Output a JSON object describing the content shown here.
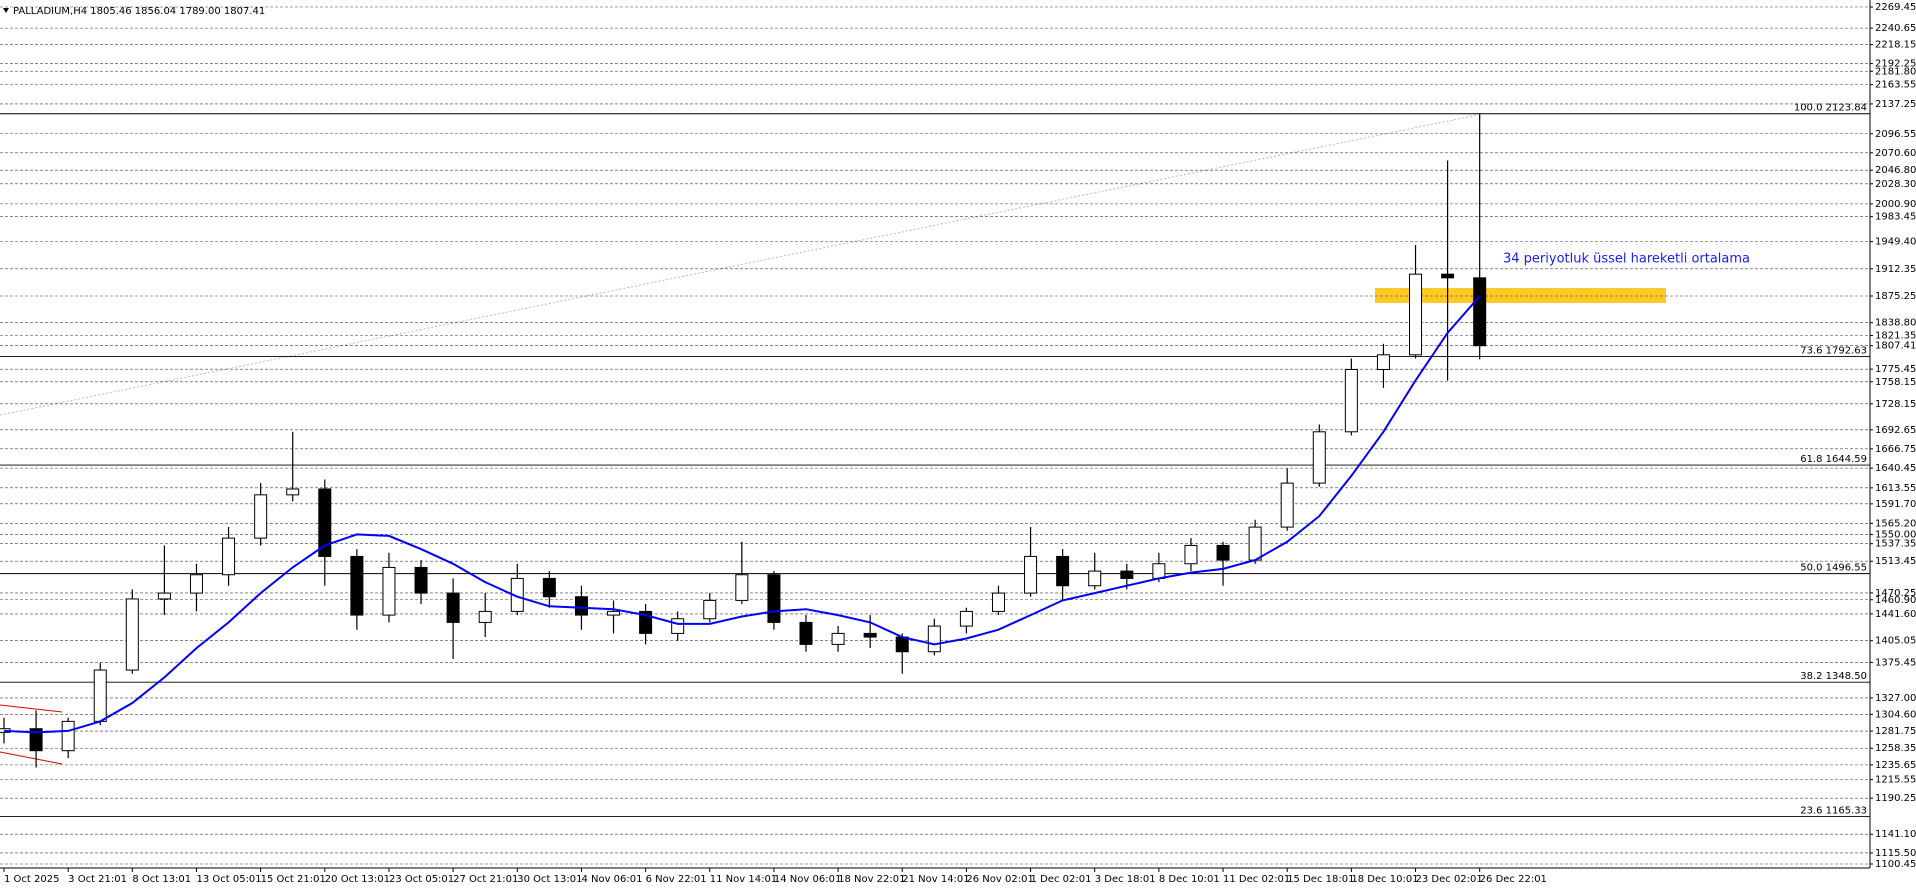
{
  "chart_data": {
    "type": "candlestick",
    "title": "PALLADIUM,H4 1805.46 1856.04 1789.00 1807.41",
    "annotation": "34 periyotluk üssel hareketli ortalama",
    "categories": [
      "1 Oct 2025",
      null,
      "3 Oct 21:01",
      null,
      "8 Oct 13:01",
      null,
      "13 Oct 05:01",
      null,
      "15 Oct 21:01",
      null,
      "20 Oct 13:01",
      null,
      "23 Oct 05:01",
      null,
      "27 Oct 21:01",
      null,
      "30 Oct 13:01",
      null,
      "4 Nov 06:01",
      null,
      "6 Nov 22:01",
      null,
      "11 Nov 14:01",
      null,
      "14 Nov 06:01",
      null,
      "18 Nov 22:01",
      null,
      "21 Nov 14:01",
      null,
      "26 Nov 02:01",
      null,
      "1 Dec 02:01",
      null,
      "3 Dec 18:01",
      null,
      "8 Dec 10:01",
      null,
      "11 Dec 02:01",
      null,
      "15 Dec 18:01",
      null,
      "18 Dec 10:01",
      null,
      "23 Dec 02:01",
      null,
      "26 Dec 22:01"
    ],
    "open": [
      1280,
      1285,
      1255,
      1295,
      1365,
      1462,
      1470,
      1495,
      1545,
      1604,
      1612,
      1520,
      1440,
      1505,
      1470,
      1430,
      1445,
      1490,
      1465,
      1440,
      1445,
      1415,
      1435,
      1460,
      1495,
      1430,
      1400,
      1415,
      1410,
      1390,
      1425,
      1445,
      1470,
      1520,
      1480,
      1500,
      1490,
      1510,
      1535,
      1515,
      1560,
      1620,
      1690,
      1775,
      1795,
      1905,
      1900
    ],
    "high": [
      1300,
      1310,
      1300,
      1375,
      1475,
      1535,
      1510,
      1560,
      1620,
      1690,
      1625,
      1530,
      1525,
      1515,
      1490,
      1470,
      1510,
      1500,
      1480,
      1460,
      1455,
      1445,
      1470,
      1540,
      1500,
      1440,
      1425,
      1440,
      1415,
      1435,
      1450,
      1480,
      1560,
      1530,
      1525,
      1510,
      1525,
      1545,
      1540,
      1570,
      1640,
      1700,
      1790,
      1810,
      1945,
      2060,
      2123.84
    ],
    "low": [
      1265,
      1232,
      1245,
      1290,
      1360,
      1440,
      1445,
      1480,
      1535,
      1595,
      1480,
      1420,
      1430,
      1455,
      1380,
      1410,
      1440,
      1450,
      1420,
      1415,
      1400,
      1405,
      1430,
      1455,
      1420,
      1390,
      1390,
      1395,
      1360,
      1385,
      1415,
      1440,
      1465,
      1460,
      1475,
      1475,
      1485,
      1500,
      1480,
      1510,
      1555,
      1615,
      1685,
      1750,
      1790,
      1760,
      1789
    ],
    "close": [
      1285,
      1255,
      1295,
      1365,
      1462,
      1470,
      1495,
      1545,
      1604,
      1612,
      1520,
      1440,
      1505,
      1470,
      1430,
      1445,
      1490,
      1465,
      1440,
      1445,
      1415,
      1435,
      1460,
      1495,
      1430,
      1400,
      1415,
      1410,
      1390,
      1425,
      1445,
      1470,
      1520,
      1480,
      1500,
      1490,
      1510,
      1535,
      1515,
      1560,
      1620,
      1690,
      1775,
      1795,
      1905,
      1900,
      1807.41
    ],
    "ema": {
      "color": "#0000ff",
      "values": [
        1282,
        1280,
        1282,
        1295,
        1320,
        1355,
        1395,
        1430,
        1470,
        1505,
        1535,
        1550,
        1548,
        1530,
        1510,
        1485,
        1465,
        1452,
        1450,
        1448,
        1440,
        1428,
        1428,
        1438,
        1445,
        1448,
        1440,
        1430,
        1410,
        1400,
        1408,
        1420,
        1440,
        1460,
        1470,
        1480,
        1490,
        1498,
        1503,
        1515,
        1540,
        1575,
        1630,
        1690,
        1760,
        1825,
        1875
      ]
    },
    "fib_levels": [
      {
        "value": 2123.84,
        "label": "100.0 2123.84"
      },
      {
        "value": 1792.63,
        "label": "73.6 1792.63"
      },
      {
        "value": 1644.59,
        "label": "61.8 1644.59"
      },
      {
        "value": 1496.55,
        "label": "50.0 1496.55"
      },
      {
        "value": 1348.5,
        "label": "38.2 1348.50"
      },
      {
        "value": 1165.33,
        "label": "23.6 1165.33"
      }
    ],
    "ylim": [
      1100.45,
      2269.45
    ],
    "yticks": [
      2269.45,
      2240.65,
      2218.15,
      2192.25,
      {
        "value": 2181.8,
        "label": "2181.80"
      },
      2163.55,
      2137.25,
      2096.55,
      {
        "value": 2070.6,
        "label": "2070.60"
      },
      {
        "value": 2046.8,
        "label": "2046.80"
      },
      {
        "value": 2028.3,
        "label": "2028.30"
      },
      {
        "value": 2000.9,
        "label": "2000.90"
      },
      1983.45,
      {
        "value": 1949.4,
        "label": "1949.40"
      },
      1912.35,
      1875.25,
      {
        "value": 1838.8,
        "label": "1838.80"
      },
      1821.35,
      1807.41,
      1775.45,
      1758.15,
      1728.15,
      1692.65,
      1666.75,
      1640.45,
      1613.55,
      {
        "value": 1591.7,
        "label": "1591.70"
      },
      {
        "value": 1565.2,
        "label": "1565.20"
      },
      {
        "value": 1550,
        "label": "1550.00"
      },
      1537.35,
      1513.45,
      1470.25,
      {
        "value": 1460.9,
        "label": "1460.90"
      },
      {
        "value": 1441.6,
        "label": "1441.60"
      },
      1405.05,
      1375.45,
      {
        "value": 1327,
        "label": "1327.00"
      },
      {
        "value": 1304.6,
        "label": "1304.60"
      },
      1281.75,
      1258.35,
      1235.65,
      1215.55,
      1190.25,
      {
        "value": 1141.1,
        "label": "1141.10"
      },
      {
        "value": 1115.5,
        "label": "1115.50"
      },
      1100.45
    ],
    "grid": true
  }
}
